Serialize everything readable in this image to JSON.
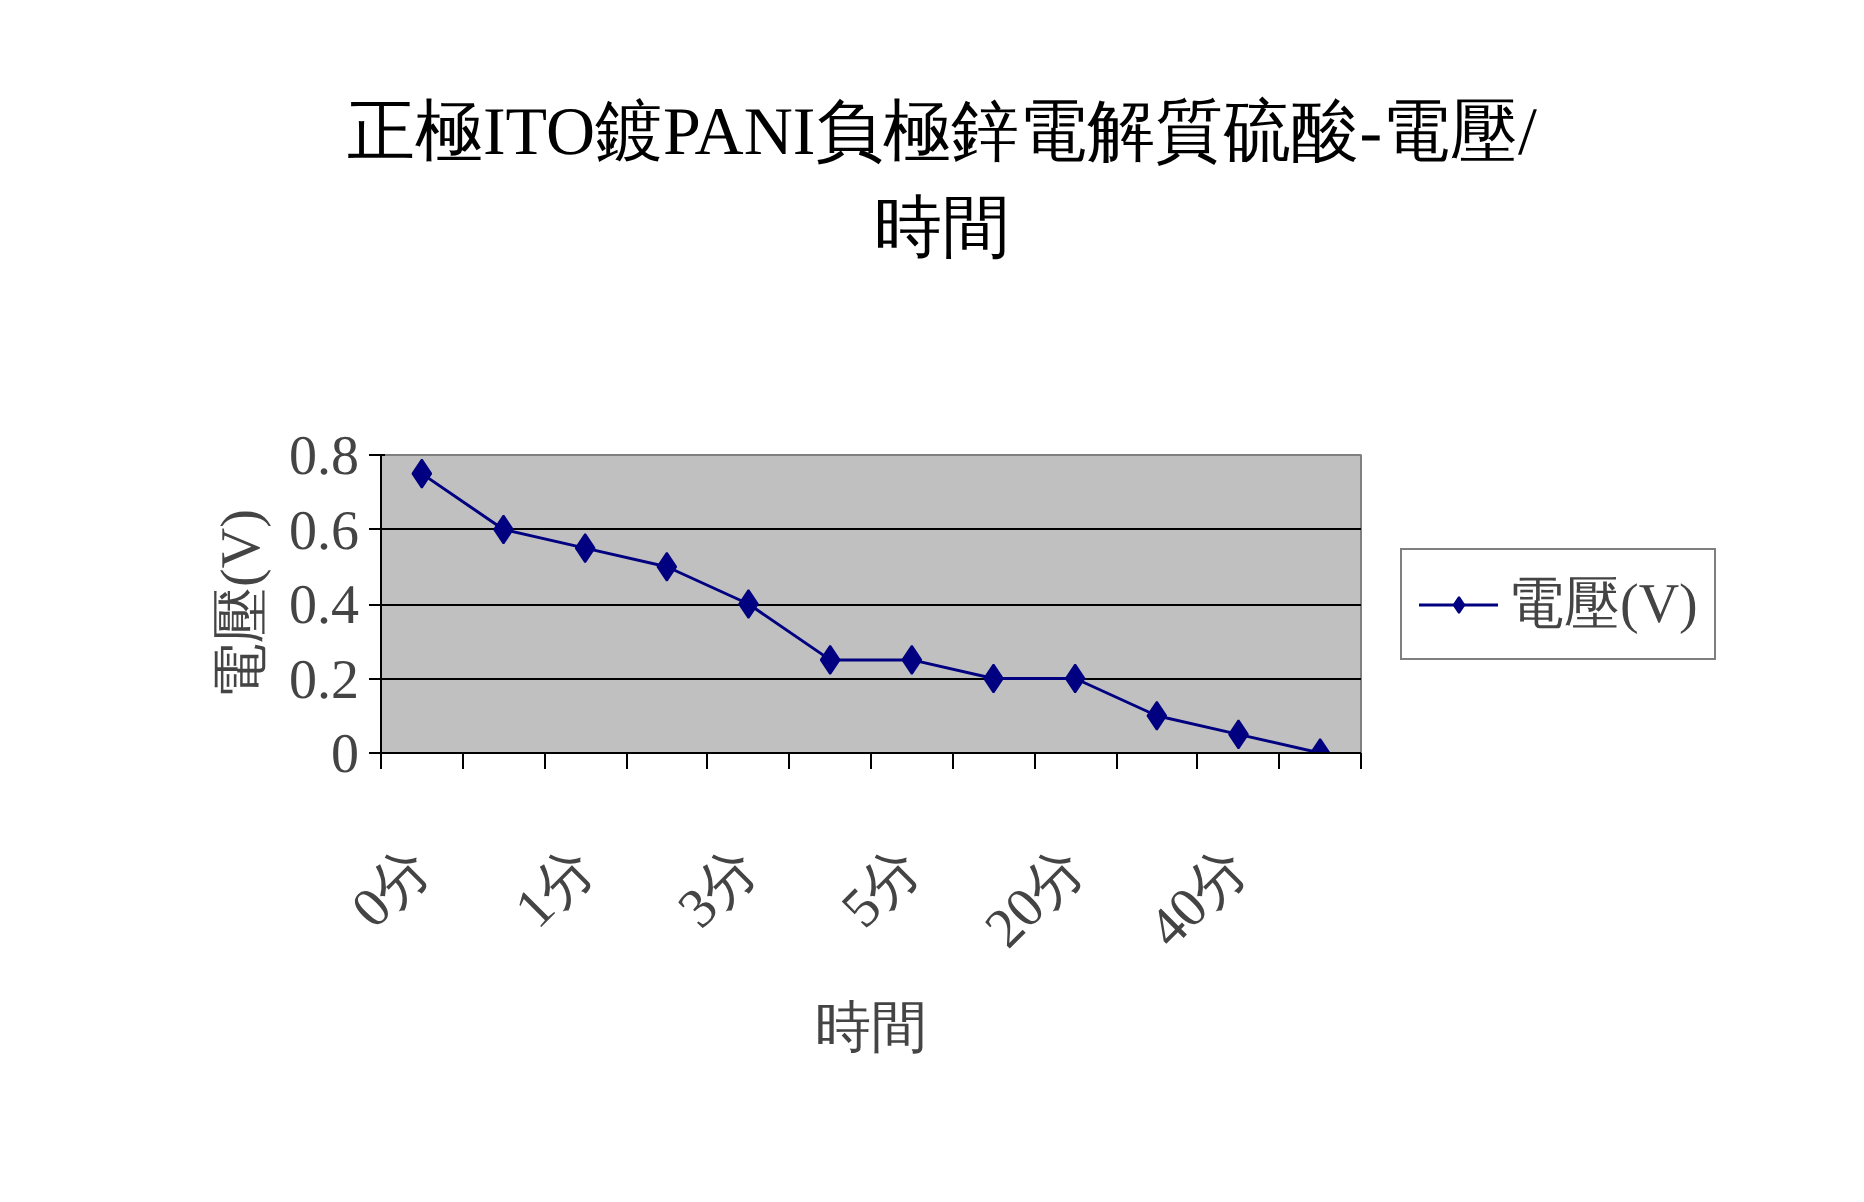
{
  "chart_data": {
    "type": "line",
    "title": "正極ITO鍍PANI負極鋅電解質硫酸-電壓/\n時間",
    "xlabel": "時間",
    "ylabel": "電壓(V)",
    "categories": [
      "0分",
      null,
      "1分",
      null,
      "3分",
      null,
      "5分",
      null,
      "20分",
      null,
      "40分",
      null
    ],
    "series": [
      {
        "name": "電壓(V)",
        "color": "#000080",
        "values": [
          0.75,
          0.6,
          0.55,
          0.5,
          0.4,
          0.25,
          0.25,
          0.2,
          0.2,
          0.1,
          0.05,
          0
        ]
      }
    ],
    "ylim": [
      0,
      0.8
    ],
    "yticks": [
      0,
      0.2,
      0.4,
      0.6,
      0.8
    ],
    "grid": "y",
    "legend": "right",
    "marker": "diamond",
    "line_style": "solid"
  }
}
